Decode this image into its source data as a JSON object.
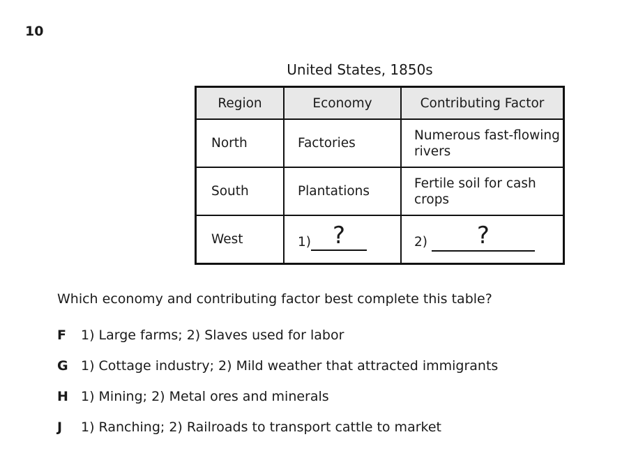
{
  "question": {
    "number": "10",
    "prompt": "Which economy and contributing factor best complete this table?"
  },
  "table": {
    "caption": "United States, 1850s",
    "headers": [
      "Region",
      "Economy",
      "Contributing Factor"
    ],
    "rows": [
      {
        "region": "North",
        "economy": "Factories",
        "factor": "Numerous fast-flowing rivers"
      },
      {
        "region": "South",
        "economy": "Plantations",
        "factor": "Fertile soil for cash crops"
      },
      {
        "region": "West",
        "economy_prefix": "1)",
        "economy_blank": "?",
        "factor_prefix": "2)",
        "factor_blank": "?"
      }
    ]
  },
  "choices": [
    {
      "letter": "F",
      "text": "1) Large farms; 2) Slaves used for labor"
    },
    {
      "letter": "G",
      "text": "1) Cottage industry; 2) Mild weather that attracted immigrants"
    },
    {
      "letter": "H",
      "text": "1) Mining; 2) Metal ores and minerals"
    },
    {
      "letter": "J",
      "text": "1) Ranching; 2) Railroads to transport cattle to market"
    }
  ]
}
